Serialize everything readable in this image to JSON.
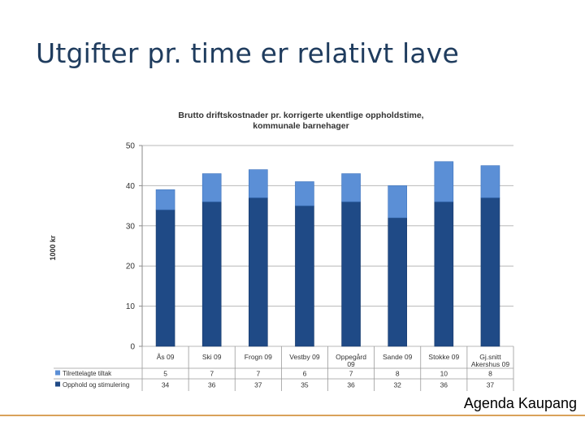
{
  "slide": {
    "title": "Utgifter pr. time er relativt lave",
    "footer": "Agenda Kaupang"
  },
  "colors": {
    "title": "#1f3c5e",
    "series_light": "#5b8fd6",
    "series_dark": "#1f4a86",
    "footer_rule": "#d9a25a"
  },
  "chart_data": {
    "type": "bar",
    "stacked": true,
    "title_lines": [
      "Brutto driftskostnader  pr. korrigerte ukentlige oppholdstime,",
      "kommunale barnehager"
    ],
    "ylabel": "1000 kr",
    "ylim": [
      0,
      50
    ],
    "yticks": [
      0,
      10,
      20,
      30,
      40,
      50
    ],
    "grid": true,
    "categories": [
      [
        "Ås 09"
      ],
      [
        "Ski 09"
      ],
      [
        "Frogn 09"
      ],
      [
        "Vestby 09"
      ],
      [
        "Oppegård",
        "09"
      ],
      [
        "Sande 09"
      ],
      [
        "Stokke 09"
      ],
      [
        "Gj.snitt",
        "Akershus 09"
      ]
    ],
    "series": [
      {
        "name": "Opphold og stimulering",
        "color": "#1f4a86",
        "values": [
          34,
          36,
          37,
          35,
          36,
          32,
          36,
          37
        ]
      },
      {
        "name": "Tilrettelagte tiltak",
        "color": "#5b8fd6",
        "values": [
          5,
          7,
          7,
          6,
          7,
          8,
          10,
          8
        ]
      }
    ],
    "table_order": [
      1,
      0
    ]
  }
}
